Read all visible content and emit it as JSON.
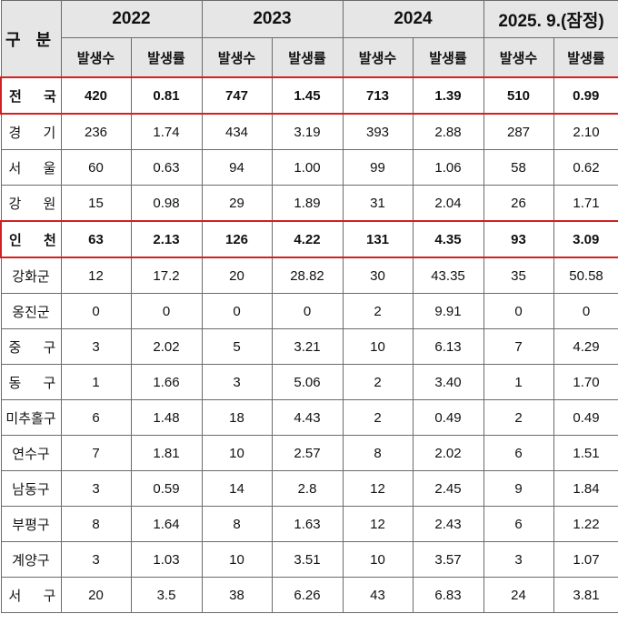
{
  "header": {
    "category_label": "구 분",
    "years": [
      "2022",
      "2023",
      "2024",
      "2025. 9.(잠정)"
    ],
    "sub_count": "발생수",
    "sub_rate": "발생률"
  },
  "rows": [
    {
      "label": "전 국",
      "values": [
        "420",
        "0.81",
        "747",
        "1.45",
        "713",
        "1.39",
        "510",
        "0.99"
      ],
      "highlight": true,
      "spread": true
    },
    {
      "label": "경 기",
      "values": [
        "236",
        "1.74",
        "434",
        "3.19",
        "393",
        "2.88",
        "287",
        "2.10"
      ],
      "highlight": false,
      "spread": true
    },
    {
      "label": "서 울",
      "values": [
        "60",
        "0.63",
        "94",
        "1.00",
        "99",
        "1.06",
        "58",
        "0.62"
      ],
      "highlight": false,
      "spread": true
    },
    {
      "label": "강 원",
      "values": [
        "15",
        "0.98",
        "29",
        "1.89",
        "31",
        "2.04",
        "26",
        "1.71"
      ],
      "highlight": false,
      "spread": true
    },
    {
      "label": "인 천",
      "values": [
        "63",
        "2.13",
        "126",
        "4.22",
        "131",
        "4.35",
        "93",
        "3.09"
      ],
      "highlight": true,
      "spread": true
    },
    {
      "label": "강화군",
      "values": [
        "12",
        "17.2",
        "20",
        "28.82",
        "30",
        "43.35",
        "35",
        "50.58"
      ],
      "highlight": false,
      "spread": false
    },
    {
      "label": "옹진군",
      "values": [
        "0",
        "0",
        "0",
        "0",
        "2",
        "9.91",
        "0",
        "0"
      ],
      "highlight": false,
      "spread": false
    },
    {
      "label": "중 구",
      "values": [
        "3",
        "2.02",
        "5",
        "3.21",
        "10",
        "6.13",
        "7",
        "4.29"
      ],
      "highlight": false,
      "spread": true
    },
    {
      "label": "동 구",
      "values": [
        "1",
        "1.66",
        "3",
        "5.06",
        "2",
        "3.40",
        "1",
        "1.70"
      ],
      "highlight": false,
      "spread": true
    },
    {
      "label": "미추홀구",
      "values": [
        "6",
        "1.48",
        "18",
        "4.43",
        "2",
        "0.49",
        "2",
        "0.49"
      ],
      "highlight": false,
      "spread": false
    },
    {
      "label": "연수구",
      "values": [
        "7",
        "1.81",
        "10",
        "2.57",
        "8",
        "2.02",
        "6",
        "1.51"
      ],
      "highlight": false,
      "spread": false
    },
    {
      "label": "남동구",
      "values": [
        "3",
        "0.59",
        "14",
        "2.8",
        "12",
        "2.45",
        "9",
        "1.84"
      ],
      "highlight": false,
      "spread": false
    },
    {
      "label": "부평구",
      "values": [
        "8",
        "1.64",
        "8",
        "1.63",
        "12",
        "2.43",
        "6",
        "1.22"
      ],
      "highlight": false,
      "spread": false
    },
    {
      "label": "계양구",
      "values": [
        "3",
        "1.03",
        "10",
        "3.51",
        "10",
        "3.57",
        "3",
        "1.07"
      ],
      "highlight": false,
      "spread": false
    },
    {
      "label": "서 구",
      "values": [
        "20",
        "3.5",
        "38",
        "6.26",
        "43",
        "6.83",
        "24",
        "3.81"
      ],
      "highlight": false,
      "spread": true
    }
  ]
}
